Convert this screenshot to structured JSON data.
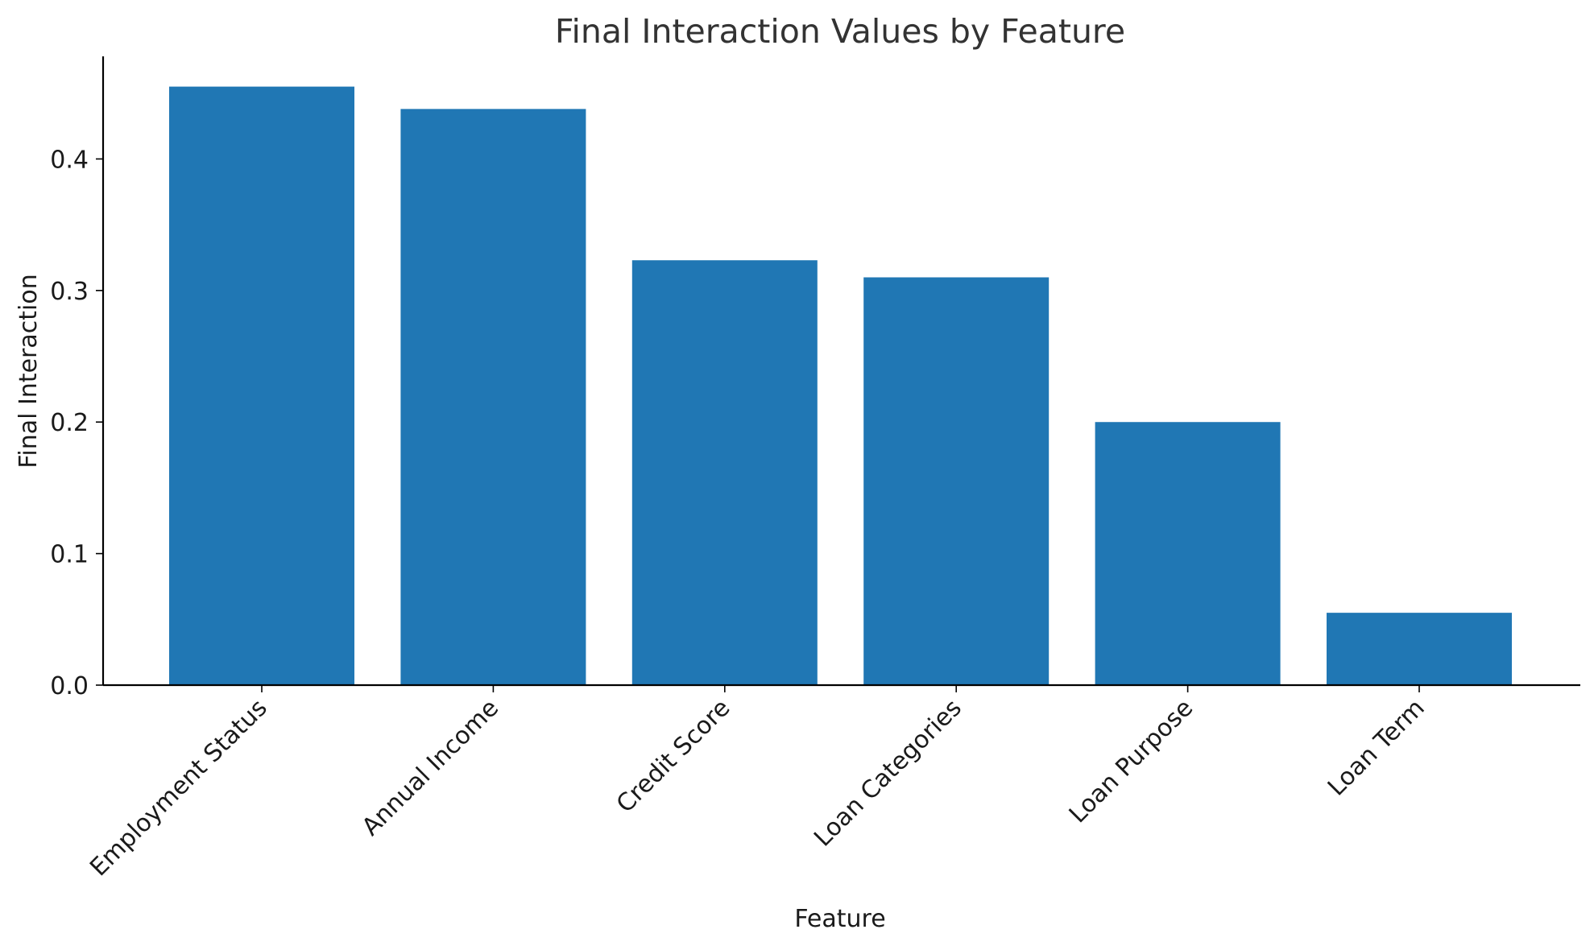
{
  "chart_data": {
    "type": "bar",
    "title": "Final Interaction Values by Feature",
    "xlabel": "Feature",
    "ylabel": "Final Interaction",
    "categories": [
      "Employment Status",
      "Annual Income",
      "Credit Score",
      "Loan Categories",
      "Loan Purpose",
      "Loan Term"
    ],
    "values": [
      0.455,
      0.438,
      0.323,
      0.31,
      0.2,
      0.055
    ],
    "ylim": [
      0,
      0.478
    ],
    "yticks": [
      "0.0",
      "0.1",
      "0.2",
      "0.3",
      "0.4"
    ],
    "grid": false,
    "legend": "none",
    "bar_color": "#2077b4"
  }
}
